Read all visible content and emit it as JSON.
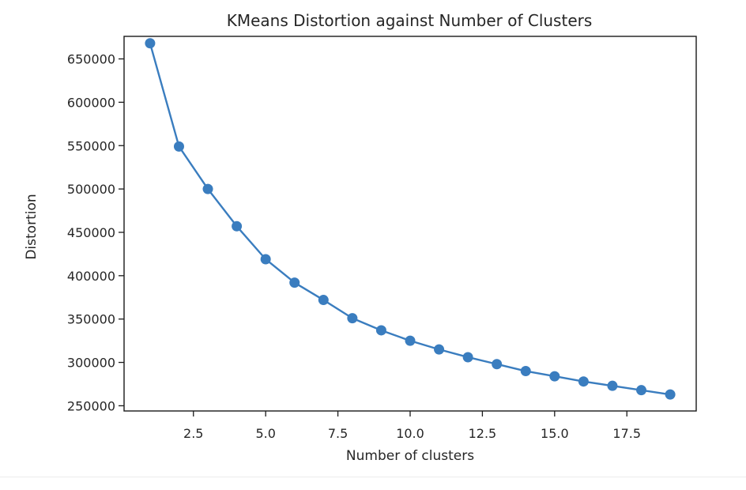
{
  "chart_data": {
    "type": "line",
    "title": "KMeans Distortion against Number of Clusters",
    "xlabel": "Number of clusters",
    "ylabel": "Distortion",
    "xlim": [
      0.1,
      19.9
    ],
    "ylim": [
      244000,
      676000
    ],
    "xticks": [
      2.5,
      5.0,
      7.5,
      10.0,
      12.5,
      15.0,
      17.5
    ],
    "xtick_labels": [
      "2.5",
      "5.0",
      "7.5",
      "10.0",
      "12.5",
      "15.0",
      "17.5"
    ],
    "yticks": [
      250000,
      300000,
      350000,
      400000,
      450000,
      500000,
      550000,
      600000,
      650000
    ],
    "ytick_labels": [
      "250000",
      "300000",
      "350000",
      "400000",
      "450000",
      "500000",
      "550000",
      "600000",
      "650000"
    ],
    "grid": false,
    "marker": "circle",
    "color": "#3a7dbf",
    "series": [
      {
        "x": [
          1,
          2,
          3,
          4,
          5,
          6,
          7,
          8,
          9,
          10,
          11,
          12,
          13,
          14,
          15,
          16,
          17,
          18,
          19
        ],
        "values": [
          668000,
          549000,
          500000,
          457000,
          419000,
          392000,
          372000,
          351000,
          337000,
          325000,
          315000,
          306000,
          298000,
          290000,
          284000,
          278000,
          273000,
          268000,
          263000
        ]
      }
    ]
  }
}
